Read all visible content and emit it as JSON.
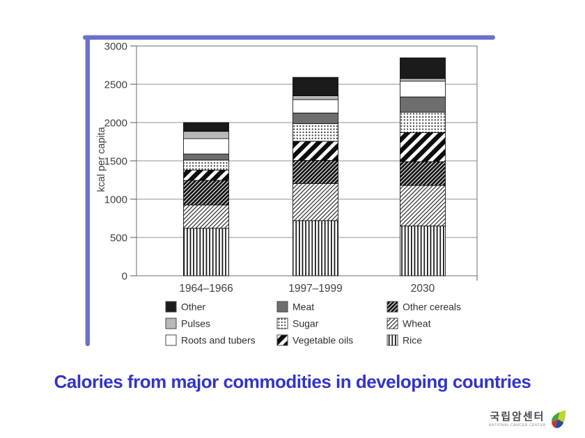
{
  "slide": {
    "title": "Calories from major commodities in developing countries",
    "title_color": "#3333cc",
    "frame_color": "#6b70cb"
  },
  "logo": {
    "korean_name": "국립암센터",
    "english_name": "NATIONAL CANCER CENTER",
    "leaf_colors": [
      "#3da53f",
      "#c3d42e",
      "#d92b2b",
      "#1d4f9e"
    ]
  },
  "chart_data": {
    "type": "bar",
    "stacked": true,
    "ylabel": "kcal per capita",
    "ylim": [
      0,
      3000
    ],
    "yticks": [
      0,
      500,
      1000,
      1500,
      2000,
      2500,
      3000
    ],
    "grid": true,
    "categories": [
      "1964–1966",
      "1997–1999",
      "2030"
    ],
    "series": [
      {
        "name": "Rice",
        "pattern": "vertical-stripes",
        "values": [
          620,
          720,
          650
        ]
      },
      {
        "name": "Wheat",
        "pattern": "light-diagonal-hatch",
        "values": [
          305,
          485,
          530
        ]
      },
      {
        "name": "Other cereals",
        "pattern": "dark-diagonal-hatch",
        "values": [
          320,
          300,
          310
        ]
      },
      {
        "name": "Vegetable oils",
        "pattern": "bold-diagonal-stripes",
        "values": [
          135,
          250,
          380
        ]
      },
      {
        "name": "Sugar",
        "pattern": "dot-grid",
        "values": [
          130,
          230,
          265
        ]
      },
      {
        "name": "Meat",
        "pattern": "solid-darkgray",
        "values": [
          80,
          140,
          200
        ]
      },
      {
        "name": "Roots and tubers",
        "pattern": "solid-white",
        "values": [
          200,
          175,
          205
        ]
      },
      {
        "name": "Pulses",
        "pattern": "solid-lightgray",
        "values": [
          95,
          50,
          35
        ]
      },
      {
        "name": "Other",
        "pattern": "solid-black",
        "values": [
          115,
          240,
          270
        ]
      }
    ],
    "totals": [
      2000,
      2590,
      2845
    ],
    "legend": {
      "position": "bottom",
      "order": [
        "Other",
        "Meat",
        "Other cereals",
        "Pulses",
        "Sugar",
        "Wheat",
        "Roots and tubers",
        "Vegetable oils",
        "Rice"
      ]
    },
    "colors": {
      "solid-black": "#1b1b1b",
      "solid-darkgray": "#6e6e6e",
      "solid-lightgray": "#b8b8b8",
      "solid-white": "#ffffff",
      "axis_text": "#3f3f3f",
      "grid_line": "#8f8f8f"
    }
  }
}
